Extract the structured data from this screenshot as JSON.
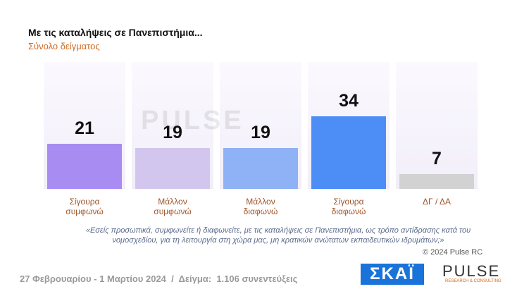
{
  "chart_data": {
    "type": "bar",
    "title": "Με τις καταλήψεις σε Πανεπιστήμια...",
    "subtitle": "Σύνολο δείγματος",
    "categories": [
      "Σίγουρα συμφωνώ",
      "Μάλλον συμφωνώ",
      "Μάλλον διαφωνώ",
      "Σίγουρα διαφωνώ",
      "ΔΓ / ΔΑ"
    ],
    "values": [
      21,
      19,
      19,
      34,
      7
    ],
    "colors": [
      "#a88cf2",
      "#d3c6ee",
      "#8fb2f6",
      "#4d8ef6",
      "#d2d2d2"
    ],
    "watermark": "PULSE",
    "question": "«Εσείς προσωπικά, συμφωνείτε ή διαφωνείτε, με τις καταλήψεις σε Πανεπιστήμια, ως τρόπο αντίδρασης κατά του νομοσχεδίου, για τη λειτουργία στη χώρα μας, μη κρατικών ανώτατων εκπαιδευτικών ιδρυμάτων;»",
    "copyright": "© 2024 Pulse RC"
  },
  "footer": "27 Φεβρουαρίου - 1 Μαρτίου 2024  /  Δείγμα:  1.106 συνεντεύξεις",
  "logos": {
    "skai": "ΣΚΑΪ",
    "pulse": "PULSE",
    "pulse_sub": "RESEARCH & CONSULTING"
  }
}
